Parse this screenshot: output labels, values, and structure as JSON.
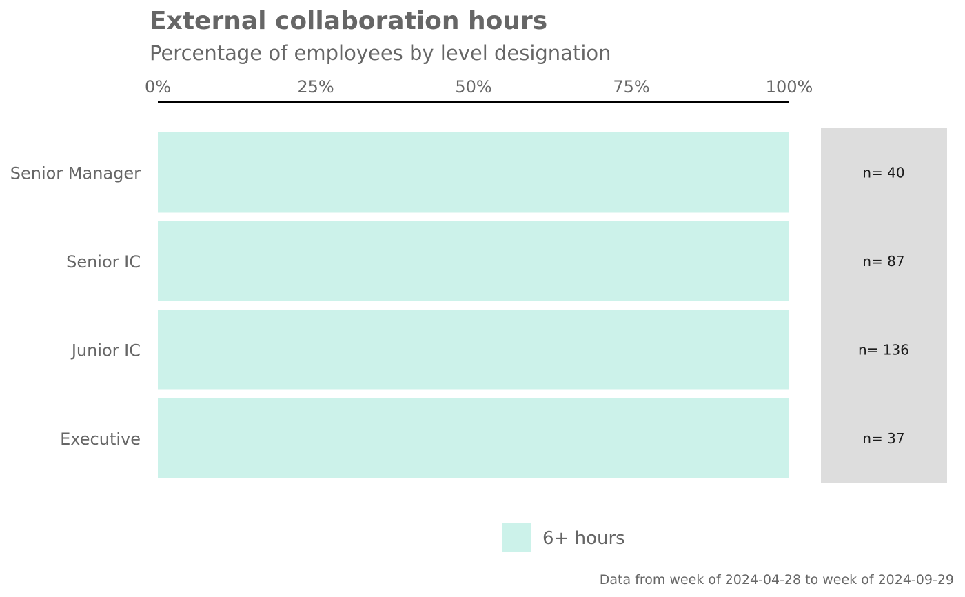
{
  "chart_data": {
    "type": "bar",
    "orientation": "horizontal",
    "stacked": true,
    "title": "External collaboration hours",
    "subtitle": "Percentage of employees by level designation",
    "caption": "Data from week of 2024-04-28 to week of 2024-09-29",
    "categories": [
      "Senior Manager",
      "Senior IC",
      "Junior IC",
      "Executive"
    ],
    "series": [
      {
        "name": "6+ hours",
        "color": "#ccf2ea",
        "values": [
          100,
          100,
          100,
          100
        ]
      }
    ],
    "counts": [
      "n= 40",
      "n= 87",
      "n= 136",
      "n= 37"
    ],
    "x_ticks": [
      "0%",
      "25%",
      "50%",
      "75%",
      "100%"
    ],
    "x_tick_values": [
      0,
      25,
      50,
      75,
      100
    ],
    "xlim": [
      0,
      100
    ],
    "grid": false,
    "legend_position": "bottom",
    "colors": {
      "text": "#666666",
      "axis_line": "#000000",
      "count_panel": "#dddddd",
      "count_text": "#1a1a1a"
    }
  }
}
